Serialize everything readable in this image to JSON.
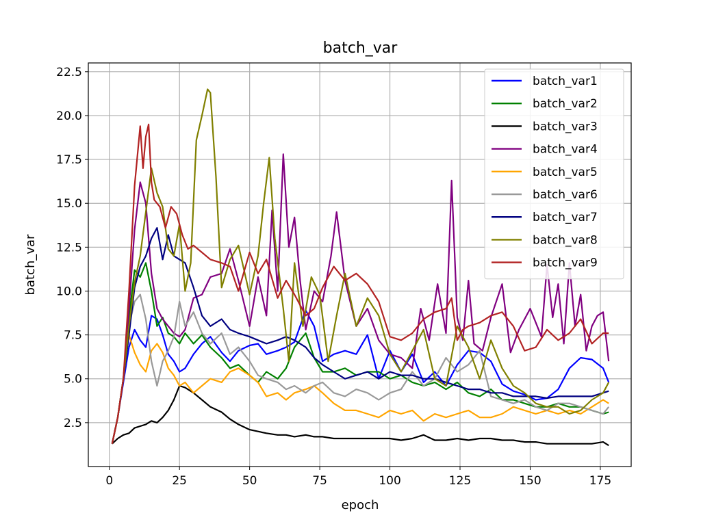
{
  "chart_data": {
    "type": "line",
    "title": "batch_var",
    "xlabel": "epoch",
    "ylabel": "batch_var",
    "xlim": [
      -7.5,
      186
    ],
    "ylim": [
      0,
      23.0
    ],
    "xticks": [
      0,
      25,
      50,
      75,
      100,
      125,
      150,
      175
    ],
    "yticks": [
      2.5,
      5.0,
      7.5,
      10.0,
      12.5,
      15.0,
      17.5,
      20.0,
      22.5
    ],
    "xtick_labels": [
      "0",
      "25",
      "50",
      "75",
      "100",
      "125",
      "150",
      "175"
    ],
    "ytick_labels": [
      "2.5",
      "5.0",
      "7.5",
      "10.0",
      "12.5",
      "15.0",
      "17.5",
      "20.0",
      "22.5"
    ],
    "grid": true,
    "legend_position": "top-right",
    "series": [
      {
        "name": "batch_var1",
        "color": "#0000ff",
        "x": [
          1,
          3,
          5,
          7,
          9,
          11,
          13,
          15,
          17,
          19,
          21,
          23,
          25,
          27,
          30,
          33,
          36,
          40,
          43,
          46,
          50,
          53,
          56,
          60,
          63,
          66,
          70,
          73,
          76,
          80,
          84,
          88,
          92,
          96,
          100,
          104,
          108,
          112,
          116,
          120,
          124,
          128,
          132,
          136,
          140,
          144,
          148,
          152,
          156,
          160,
          164,
          168,
          172,
          176,
          178
        ],
        "values": [
          1.3,
          2.8,
          4.8,
          6.8,
          7.8,
          7.2,
          6.8,
          8.6,
          8.4,
          7.5,
          6.4,
          6.0,
          5.4,
          5.6,
          6.4,
          7.0,
          7.4,
          6.5,
          6.0,
          6.6,
          6.9,
          7.0,
          6.4,
          6.6,
          6.8,
          7.1,
          8.9,
          8.0,
          6.0,
          6.4,
          6.6,
          6.4,
          7.5,
          5.0,
          6.6,
          5.4,
          6.4,
          4.8,
          5.4,
          4.6,
          5.8,
          6.6,
          6.5,
          6.0,
          4.7,
          4.3,
          4.1,
          3.8,
          3.9,
          4.4,
          5.6,
          6.2,
          6.1,
          5.6,
          4.8
        ]
      },
      {
        "name": "batch_var2",
        "color": "#008000",
        "x": [
          1,
          3,
          5,
          7,
          9,
          11,
          13,
          15,
          17,
          19,
          21,
          23,
          25,
          27,
          30,
          33,
          36,
          40,
          43,
          46,
          50,
          53,
          56,
          60,
          63,
          66,
          70,
          73,
          76,
          80,
          84,
          88,
          92,
          96,
          100,
          104,
          108,
          112,
          116,
          120,
          124,
          128,
          132,
          136,
          140,
          144,
          148,
          152,
          156,
          160,
          164,
          168,
          172,
          176,
          178
        ],
        "values": [
          1.3,
          2.8,
          5.0,
          8.5,
          11.2,
          10.8,
          11.6,
          10.0,
          8.0,
          8.5,
          7.6,
          7.4,
          7.0,
          7.6,
          7.0,
          7.5,
          6.8,
          6.2,
          5.6,
          5.8,
          5.2,
          4.8,
          5.4,
          5.0,
          5.6,
          6.8,
          7.6,
          6.2,
          5.4,
          5.4,
          5.6,
          5.2,
          5.4,
          5.4,
          5.0,
          5.2,
          4.8,
          4.6,
          4.8,
          4.4,
          4.8,
          4.2,
          4.0,
          4.4,
          3.8,
          3.8,
          3.6,
          3.4,
          3.4,
          3.6,
          3.4,
          3.4,
          3.2,
          3.0,
          3.1
        ]
      },
      {
        "name": "batch_var3",
        "color": "#000000",
        "x": [
          1,
          3,
          5,
          7,
          9,
          11,
          13,
          15,
          17,
          19,
          21,
          23,
          25,
          27,
          30,
          33,
          36,
          40,
          43,
          46,
          50,
          53,
          56,
          60,
          63,
          66,
          70,
          73,
          76,
          80,
          84,
          88,
          92,
          96,
          100,
          104,
          108,
          112,
          116,
          120,
          124,
          128,
          132,
          136,
          140,
          144,
          148,
          152,
          156,
          160,
          164,
          168,
          172,
          176,
          178
        ],
        "values": [
          1.3,
          1.6,
          1.8,
          1.9,
          2.2,
          2.3,
          2.4,
          2.6,
          2.5,
          2.8,
          3.2,
          3.8,
          4.6,
          4.5,
          4.2,
          3.8,
          3.4,
          3.1,
          2.7,
          2.4,
          2.1,
          2.0,
          1.9,
          1.8,
          1.8,
          1.7,
          1.8,
          1.7,
          1.7,
          1.6,
          1.6,
          1.6,
          1.6,
          1.6,
          1.6,
          1.5,
          1.6,
          1.8,
          1.5,
          1.5,
          1.6,
          1.5,
          1.6,
          1.6,
          1.5,
          1.5,
          1.4,
          1.4,
          1.3,
          1.3,
          1.3,
          1.3,
          1.3,
          1.4,
          1.2
        ]
      },
      {
        "name": "batch_var4",
        "color": "#800080",
        "x": [
          1,
          3,
          5,
          7,
          9,
          11,
          13,
          15,
          17,
          19,
          21,
          23,
          25,
          27,
          30,
          33,
          36,
          40,
          43,
          46,
          50,
          53,
          56,
          58,
          60,
          62,
          64,
          66,
          68,
          70,
          73,
          76,
          79,
          81,
          84,
          88,
          92,
          96,
          100,
          104,
          108,
          111,
          114,
          117,
          120,
          122,
          124,
          126,
          128,
          130,
          133,
          136,
          140,
          143,
          146,
          150,
          154,
          156,
          158,
          160,
          162,
          164,
          166,
          168,
          170,
          172,
          174,
          176,
          178
        ],
        "values": [
          1.3,
          2.8,
          5.0,
          9.0,
          13.5,
          16.2,
          15.0,
          11.0,
          9.0,
          8.4,
          8.0,
          7.6,
          7.4,
          7.8,
          9.6,
          9.8,
          10.8,
          11.0,
          12.4,
          10.6,
          8.0,
          10.8,
          8.6,
          14.6,
          10.0,
          17.8,
          12.5,
          14.2,
          10.6,
          7.8,
          10.0,
          9.4,
          12.0,
          14.5,
          10.6,
          8.0,
          9.0,
          7.2,
          6.4,
          6.2,
          5.6,
          9.0,
          7.2,
          10.4,
          7.6,
          16.3,
          8.5,
          7.2,
          10.6,
          7.0,
          6.6,
          8.5,
          10.4,
          6.5,
          7.8,
          9.0,
          7.4,
          11.5,
          8.5,
          10.4,
          7.0,
          11.6,
          8.0,
          9.8,
          6.6,
          8.0,
          8.6,
          8.8,
          6.0
        ]
      },
      {
        "name": "batch_var5",
        "color": "#ffa500",
        "x": [
          1,
          3,
          5,
          7,
          9,
          11,
          13,
          15,
          17,
          19,
          21,
          23,
          25,
          27,
          30,
          33,
          36,
          40,
          43,
          46,
          50,
          53,
          56,
          60,
          63,
          66,
          70,
          73,
          76,
          80,
          84,
          88,
          92,
          96,
          100,
          104,
          108,
          112,
          116,
          120,
          124,
          128,
          132,
          136,
          140,
          144,
          148,
          152,
          156,
          160,
          164,
          168,
          172,
          176,
          178
        ],
        "values": [
          1.3,
          2.8,
          5.0,
          7.5,
          6.5,
          5.8,
          5.4,
          6.6,
          7.0,
          6.5,
          5.6,
          5.2,
          4.6,
          4.8,
          4.2,
          4.6,
          5.0,
          4.8,
          5.4,
          5.6,
          5.2,
          4.8,
          4.0,
          4.2,
          3.8,
          4.2,
          4.4,
          4.6,
          4.2,
          3.6,
          3.2,
          3.2,
          3.0,
          2.8,
          3.2,
          3.0,
          3.2,
          2.6,
          3.0,
          2.8,
          3.0,
          3.2,
          2.8,
          2.8,
          3.0,
          3.4,
          3.2,
          3.0,
          3.2,
          3.0,
          3.2,
          3.0,
          3.4,
          3.8,
          3.6
        ]
      },
      {
        "name": "batch_var6",
        "color": "#999999",
        "x": [
          1,
          3,
          5,
          7,
          9,
          11,
          13,
          15,
          17,
          19,
          21,
          23,
          25,
          27,
          30,
          33,
          36,
          40,
          43,
          46,
          50,
          53,
          56,
          60,
          63,
          66,
          70,
          73,
          76,
          80,
          84,
          88,
          92,
          96,
          100,
          104,
          108,
          112,
          116,
          120,
          124,
          128,
          132,
          136,
          140,
          144,
          148,
          152,
          156,
          160,
          164,
          168,
          172,
          176,
          178
        ],
        "values": [
          1.3,
          2.8,
          5.0,
          8.0,
          9.4,
          9.8,
          8.4,
          6.0,
          4.6,
          6.0,
          6.6,
          7.4,
          9.4,
          8.0,
          8.8,
          7.6,
          7.0,
          7.6,
          6.4,
          6.8,
          6.0,
          5.2,
          5.0,
          4.8,
          4.4,
          4.6,
          4.2,
          4.6,
          4.8,
          4.2,
          4.0,
          4.4,
          4.2,
          3.8,
          4.2,
          4.4,
          5.4,
          4.6,
          5.0,
          6.2,
          5.4,
          5.8,
          6.6,
          4.0,
          3.8,
          3.6,
          3.8,
          3.4,
          3.2,
          3.6,
          3.6,
          3.4,
          3.2,
          3.0,
          3.4
        ]
      },
      {
        "name": "batch_var7",
        "color": "#000080",
        "x": [
          1,
          3,
          5,
          7,
          9,
          11,
          13,
          15,
          17,
          19,
          21,
          23,
          25,
          27,
          30,
          33,
          36,
          40,
          43,
          46,
          50,
          53,
          56,
          60,
          63,
          66,
          70,
          73,
          76,
          80,
          84,
          88,
          92,
          96,
          100,
          104,
          108,
          112,
          116,
          120,
          124,
          128,
          132,
          136,
          140,
          144,
          148,
          152,
          156,
          160,
          164,
          168,
          172,
          176,
          178
        ],
        "values": [
          1.3,
          2.8,
          5.0,
          7.5,
          10.2,
          11.4,
          12.0,
          13.0,
          13.6,
          11.8,
          13.2,
          12.0,
          11.8,
          11.6,
          10.2,
          8.6,
          8.0,
          8.4,
          7.8,
          7.6,
          7.4,
          7.2,
          7.0,
          7.2,
          7.4,
          7.2,
          6.8,
          6.2,
          5.8,
          5.4,
          5.0,
          5.2,
          5.4,
          5.0,
          5.4,
          5.2,
          5.2,
          5.0,
          5.0,
          4.8,
          4.6,
          4.4,
          4.4,
          4.2,
          4.2,
          4.0,
          4.0,
          4.0,
          3.9,
          4.0,
          4.0,
          4.0,
          4.0,
          4.2,
          4.3
        ]
      },
      {
        "name": "batch_var8",
        "color": "#808000",
        "x": [
          1,
          3,
          5,
          7,
          9,
          11,
          13,
          15,
          17,
          19,
          21,
          23,
          25,
          27,
          29,
          31,
          33,
          35,
          36,
          38,
          40,
          43,
          46,
          50,
          53,
          55,
          57,
          59,
          62,
          64,
          66,
          69,
          72,
          75,
          78,
          81,
          84,
          88,
          92,
          96,
          100,
          104,
          108,
          112,
          116,
          120,
          124,
          128,
          132,
          136,
          140,
          144,
          148,
          152,
          156,
          160,
          164,
          168,
          172,
          176,
          178
        ],
        "values": [
          1.3,
          2.8,
          5.0,
          8.0,
          10.5,
          12.0,
          14.5,
          17.0,
          15.6,
          14.8,
          12.4,
          12.0,
          13.8,
          10.0,
          11.6,
          18.6,
          20.0,
          21.5,
          21.3,
          16.5,
          10.2,
          11.8,
          12.6,
          9.8,
          12.0,
          15.0,
          17.6,
          13.0,
          9.0,
          6.0,
          11.6,
          8.0,
          10.8,
          9.8,
          6.0,
          8.6,
          11.0,
          8.0,
          9.6,
          8.6,
          6.4,
          5.4,
          6.6,
          7.8,
          5.0,
          4.6,
          8.0,
          6.8,
          5.0,
          7.2,
          5.6,
          4.6,
          4.2,
          3.6,
          3.4,
          3.4,
          3.0,
          3.2,
          3.8,
          4.2,
          4.8
        ]
      },
      {
        "name": "batch_var9",
        "color": "#b22222",
        "x": [
          1,
          3,
          5,
          7,
          9,
          11,
          12,
          13,
          14,
          15,
          16,
          18,
          20,
          22,
          24,
          26,
          28,
          30,
          33,
          36,
          40,
          43,
          46,
          50,
          53,
          56,
          60,
          63,
          66,
          70,
          73,
          76,
          80,
          84,
          88,
          92,
          96,
          100,
          104,
          108,
          112,
          116,
          120,
          122,
          124,
          126,
          128,
          132,
          136,
          140,
          144,
          148,
          152,
          156,
          160,
          164,
          168,
          172,
          176,
          178
        ],
        "values": [
          1.3,
          2.8,
          5.0,
          10.0,
          16.0,
          19.4,
          17.0,
          18.8,
          19.5,
          16.2,
          15.2,
          14.8,
          13.6,
          14.8,
          14.4,
          13.2,
          12.4,
          12.6,
          12.2,
          11.8,
          11.6,
          11.4,
          10.0,
          12.2,
          11.0,
          11.8,
          9.6,
          10.6,
          9.8,
          8.6,
          9.0,
          10.2,
          11.4,
          10.6,
          11.0,
          10.4,
          9.4,
          7.4,
          7.2,
          7.6,
          8.4,
          8.8,
          9.0,
          9.6,
          7.2,
          7.8,
          8.0,
          8.2,
          8.6,
          8.8,
          8.0,
          6.6,
          6.8,
          7.8,
          7.2,
          7.6,
          8.4,
          7.0,
          7.6,
          7.6
        ]
      }
    ]
  }
}
